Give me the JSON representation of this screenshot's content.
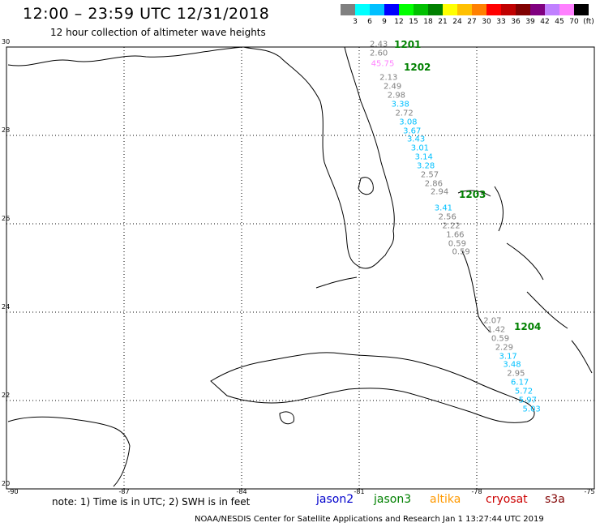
{
  "title": "12:00 – 23:59 UTC 12/31/2018",
  "subtitle": "12 hour collection of altimeter wave heights",
  "scale": {
    "unit": "(ft)",
    "colors": [
      "#808080",
      "#00ffff",
      "#00c0ff",
      "#0000ff",
      "#00ff00",
      "#00c000",
      "#008000",
      "#ffff00",
      "#ffc000",
      "#ff8000",
      "#ff0000",
      "#c00000",
      "#800000",
      "#800080",
      "#c080ff",
      "#ff80ff",
      "#000000"
    ],
    "labels": [
      "3",
      "6",
      "9",
      "12",
      "15",
      "18",
      "21",
      "24",
      "27",
      "30",
      "33",
      "36",
      "39",
      "42",
      "45",
      "70"
    ]
  },
  "lat_labels": [
    "30",
    "28",
    "26",
    "24",
    "22",
    "20"
  ],
  "lon_labels": [
    "-90",
    "-87",
    "-84",
    "-81",
    "-78",
    "-75"
  ],
  "pass_labels": [
    "1201",
    "1202",
    "1203",
    "1204"
  ],
  "observations": [
    {
      "v": "2.43",
      "lat": 30.05,
      "lon": -80.5,
      "c": "#808080"
    },
    {
      "v": "2.60",
      "lat": 29.85,
      "lon": -80.5,
      "c": "#808080"
    },
    {
      "v": "45.75",
      "lat": 29.62,
      "lon": -80.4,
      "c": "#ff80ff"
    },
    {
      "v": "2.13",
      "lat": 29.3,
      "lon": -80.25,
      "c": "#808080"
    },
    {
      "v": "2.49",
      "lat": 29.1,
      "lon": -80.15,
      "c": "#808080"
    },
    {
      "v": "2.98",
      "lat": 28.9,
      "lon": -80.05,
      "c": "#808080"
    },
    {
      "v": "3.38",
      "lat": 28.7,
      "lon": -79.95,
      "c": "#00c0ff"
    },
    {
      "v": "2.72",
      "lat": 28.5,
      "lon": -79.85,
      "c": "#808080"
    },
    {
      "v": "3.08",
      "lat": 28.3,
      "lon": -79.75,
      "c": "#00c0ff"
    },
    {
      "v": "3.67",
      "lat": 28.1,
      "lon": -79.65,
      "c": "#00c0ff"
    },
    {
      "v": "3.43",
      "lat": 27.9,
      "lon": -79.55,
      "c": "#00c0ff"
    },
    {
      "v": "3.01",
      "lat": 27.7,
      "lon": -79.45,
      "c": "#00c0ff"
    },
    {
      "v": "3.14",
      "lat": 27.5,
      "lon": -79.35,
      "c": "#00c0ff"
    },
    {
      "v": "3.28",
      "lat": 27.3,
      "lon": -79.3,
      "c": "#00c0ff"
    },
    {
      "v": "2.57",
      "lat": 27.1,
      "lon": -79.2,
      "c": "#808080"
    },
    {
      "v": "2.86",
      "lat": 26.9,
      "lon": -79.1,
      "c": "#808080"
    },
    {
      "v": "2.94",
      "lat": 26.72,
      "lon": -78.95,
      "c": "#808080"
    },
    {
      "v": "3.41",
      "lat": 26.35,
      "lon": -78.85,
      "c": "#00c0ff"
    },
    {
      "v": "2.56",
      "lat": 26.15,
      "lon": -78.75,
      "c": "#808080"
    },
    {
      "v": "2.22",
      "lat": 25.95,
      "lon": -78.65,
      "c": "#808080"
    },
    {
      "v": "1.66",
      "lat": 25.75,
      "lon": -78.55,
      "c": "#808080"
    },
    {
      "v": "0.59",
      "lat": 25.55,
      "lon": -78.5,
      "c": "#808080"
    },
    {
      "v": "0.59",
      "lat": 25.35,
      "lon": -78.4,
      "c": "#808080"
    },
    {
      "v": "2.07",
      "lat": 23.8,
      "lon": -77.6,
      "c": "#808080"
    },
    {
      "v": "1.42",
      "lat": 23.6,
      "lon": -77.5,
      "c": "#808080"
    },
    {
      "v": "0.59",
      "lat": 23.4,
      "lon": -77.4,
      "c": "#808080"
    },
    {
      "v": "2.29",
      "lat": 23.2,
      "lon": -77.3,
      "c": "#808080"
    },
    {
      "v": "3.17",
      "lat": 23.0,
      "lon": -77.2,
      "c": "#00c0ff"
    },
    {
      "v": "3.48",
      "lat": 22.8,
      "lon": -77.1,
      "c": "#00c0ff"
    },
    {
      "v": "2.95",
      "lat": 22.6,
      "lon": -77.0,
      "c": "#808080"
    },
    {
      "v": "6.17",
      "lat": 22.4,
      "lon": -76.9,
      "c": "#00c0ff"
    },
    {
      "v": "5.72",
      "lat": 22.2,
      "lon": -76.8,
      "c": "#00c0ff"
    },
    {
      "v": "5.97",
      "lat": 22.0,
      "lon": -76.7,
      "c": "#00c0ff"
    },
    {
      "v": "5.03",
      "lat": 21.8,
      "lon": -76.6,
      "c": "#00c0ff"
    }
  ],
  "note": "note: 1) Time is in UTC; 2) SWH is in feet",
  "satellites": [
    {
      "name": "jason2",
      "color": "#0000cc"
    },
    {
      "name": "jason3",
      "color": "#008000"
    },
    {
      "name": "altika",
      "color": "#ff9900"
    },
    {
      "name": "cryosat",
      "color": "#cc0000"
    },
    {
      "name": "s3a",
      "color": "#800000"
    }
  ],
  "footer": "NOAA/NESDIS Center for Satellite Applications and Research     Jan  1 13:27:44 UTC 2019"
}
